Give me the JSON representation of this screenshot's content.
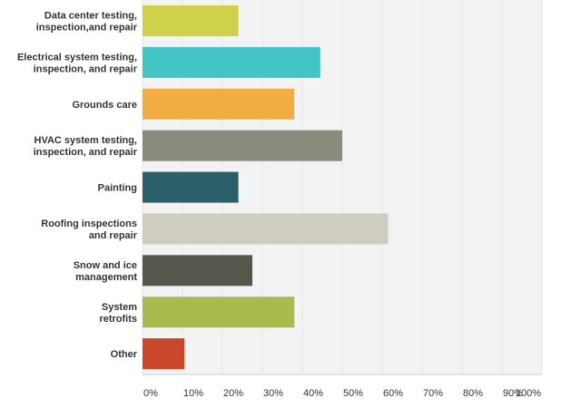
{
  "chart_data": {
    "type": "bar",
    "orientation": "horizontal",
    "categories": [
      [
        "Data center testing,",
        "inspection,and repair"
      ],
      [
        "Electrical system testing,",
        "inspection, and repair"
      ],
      [
        "Grounds care"
      ],
      [
        "HVAC system testing,",
        "inspection, and repair"
      ],
      [
        "Painting"
      ],
      [
        "Roofing inspections",
        "and repair"
      ],
      [
        "Snow and ice",
        "management"
      ],
      [
        "System",
        "retrofits"
      ],
      [
        "Other"
      ]
    ],
    "values": [
      24,
      44.5,
      38,
      50,
      24,
      61.5,
      27.5,
      38,
      10.5
    ],
    "colors": [
      "#cfd14a",
      "#44c4c4",
      "#f2ad42",
      "#8a8b7c",
      "#2d5f6b",
      "#cfcdbf",
      "#55574a",
      "#a9bb4f",
      "#c8472c"
    ],
    "xlim": [
      0,
      100
    ],
    "ticks": [
      "0%",
      "10%",
      "20%",
      "30%",
      "40%",
      "50%",
      "60%",
      "70%",
      "80%",
      "90%",
      "100%"
    ],
    "grid": true,
    "grid_color": "#e6e6e6",
    "plot_background": "#f3f3f3",
    "axis_color": "#cccccc"
  }
}
